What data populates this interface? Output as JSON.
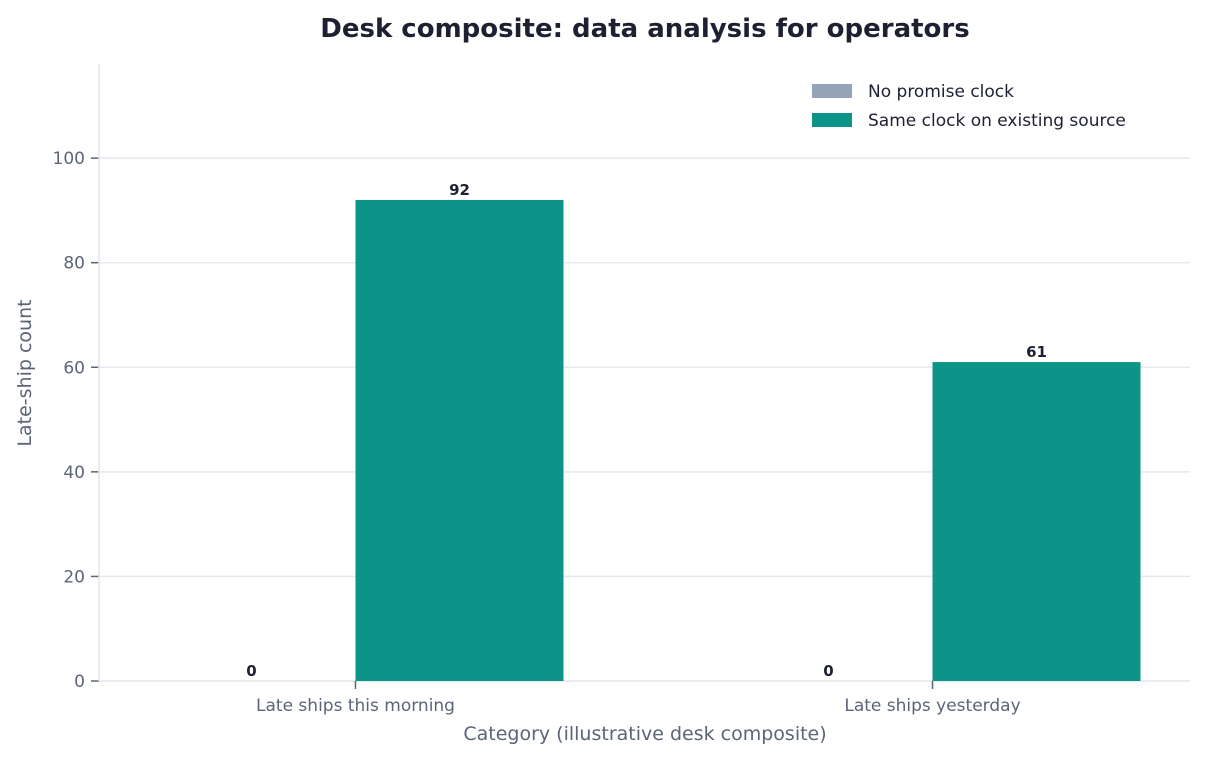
{
  "chart_data": {
    "type": "bar",
    "title": "Desk composite: data analysis for operators",
    "xlabel": "Category (illustrative desk composite)",
    "ylabel": "Late-ship count",
    "categories": [
      "Late ships this morning",
      "Late ships yesterday"
    ],
    "series": [
      {
        "name": "No promise clock",
        "values": [
          0,
          0
        ],
        "color": "#94a3b8"
      },
      {
        "name": "Same clock on existing source",
        "values": [
          92,
          61
        ],
        "color": "#0d9488"
      }
    ],
    "ylim": [
      0,
      118
    ],
    "yticks": [
      0,
      20,
      40,
      60,
      80,
      100
    ],
    "grid": true,
    "legend_position": "top-right"
  }
}
